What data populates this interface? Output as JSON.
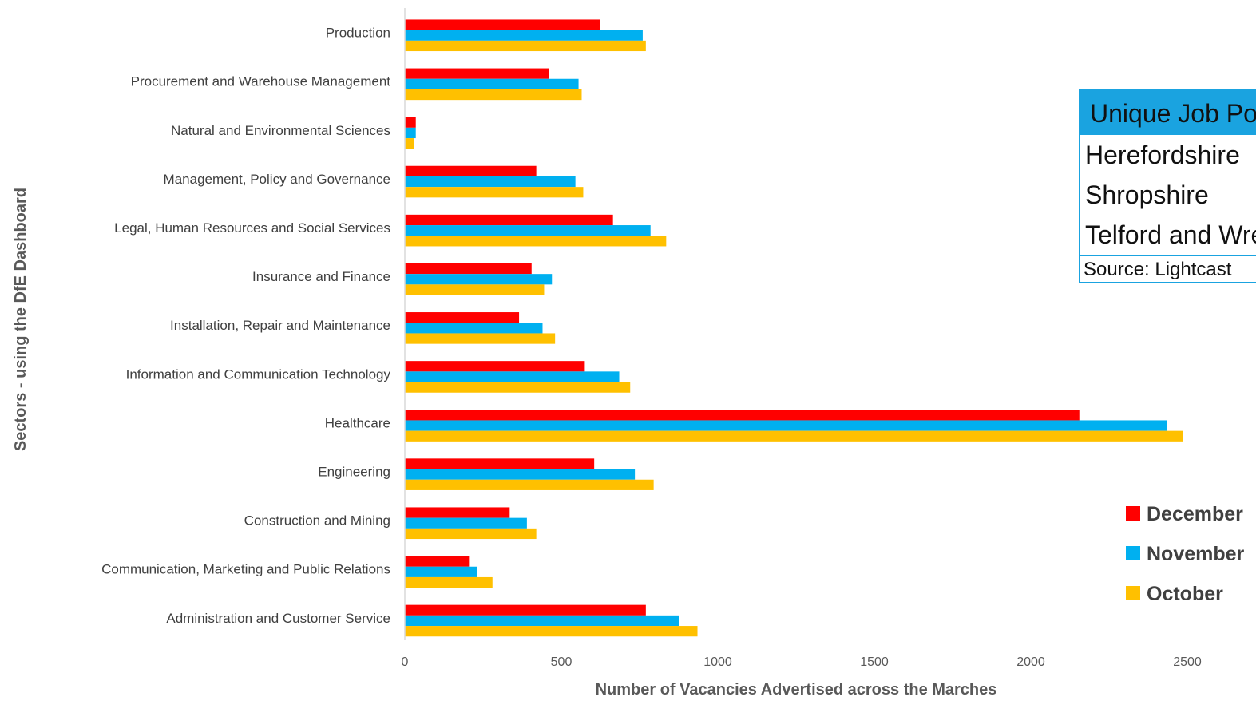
{
  "chart_data": {
    "type": "bar",
    "orientation": "horizontal",
    "categories": [
      "Production",
      "Procurement and Warehouse Management",
      "Natural and Environmental Sciences",
      "Management, Policy and Governance",
      "Legal, Human Resources and Social Services",
      "Insurance and Finance",
      "Installation, Repair and Maintenance",
      "Information and Communication Technology",
      "Healthcare",
      "Engineering",
      "Construction and Mining",
      "Communication, Marketing and Public Relations",
      "Administration and Customer Service"
    ],
    "series": [
      {
        "name": "December",
        "color": "#ff0000",
        "values": [
          625,
          460,
          35,
          420,
          665,
          405,
          365,
          575,
          2155,
          605,
          335,
          205,
          770
        ]
      },
      {
        "name": "November",
        "color": "#00b0f0",
        "values": [
          760,
          555,
          35,
          545,
          785,
          470,
          440,
          685,
          2435,
          735,
          390,
          230,
          875
        ]
      },
      {
        "name": "October",
        "color": "#ffc000",
        "values": [
          770,
          565,
          30,
          570,
          835,
          445,
          480,
          720,
          2485,
          795,
          420,
          280,
          935
        ]
      }
    ],
    "xlim": [
      0,
      2500
    ],
    "xticks": [
      0,
      500,
      1000,
      1500,
      2000,
      2500
    ],
    "xlabel": "Number of Vacancies Advertised across the Marches",
    "ylabel": "Sectors - using the DfE Dashboard",
    "legend_placement": "right",
    "grid": false
  },
  "info_box": {
    "title": "Unique Job Postings",
    "rows": [
      "Herefordshire",
      "Shropshire",
      "Telford and Wrekin"
    ],
    "source": "Source: Lightcast"
  }
}
